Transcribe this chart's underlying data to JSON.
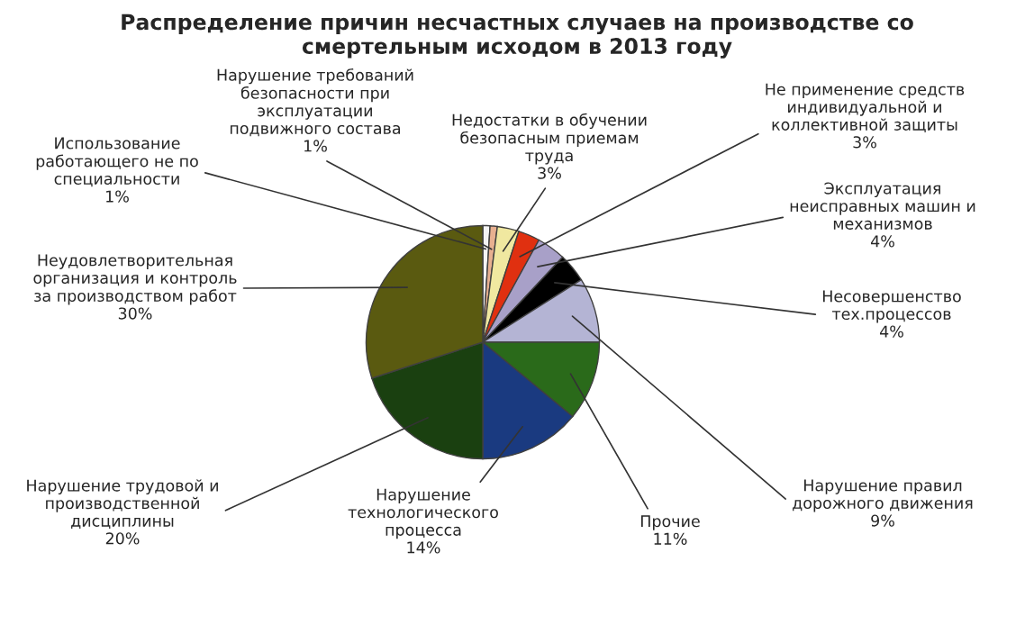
{
  "chart_data": {
    "type": "pie",
    "title": "Распределение причин несчастных случаев на производстве со\nсмертельным исходом в 2013 году",
    "categories": [
      "Использование\nработающего не по\nспециальности",
      "Нарушение требований\nбезопасности при\nэксплуатации\nподвижного состава",
      "Недостатки в обучении\nбезопасным приемам\nтруда",
      "Не применение средств\nиндивидуальной и\nколлективной защиты",
      "Эксплуатация\nнеисправных машин и\nмеханизмов",
      "Несовершенство\nтех.процессов",
      "Нарушение правил\nдорожного движения",
      "Прочие",
      "Нарушение\nтехнологического\nпроцесса",
      "Нарушение трудовой и\nпроизводственной\nдисциплины",
      "Неудовлетворительная\nорганизация и контроль\nза производством работ"
    ],
    "values": [
      1,
      1,
      3,
      3,
      4,
      4,
      9,
      11,
      14,
      20,
      30
    ],
    "value_labels": [
      "1%",
      "1%",
      "3%",
      "3%",
      "4%",
      "4%",
      "9%",
      "11%",
      "14%",
      "20%",
      "30%"
    ],
    "colors": [
      "#f4f4f4",
      "#e8b090",
      "#f0e8a0",
      "#e03010",
      "#a8a0c8",
      "#000000",
      "#b4b4d4",
      "#2a6a1a",
      "#1a3a80",
      "#1a4010",
      "#5a5a10"
    ],
    "legend": false
  }
}
